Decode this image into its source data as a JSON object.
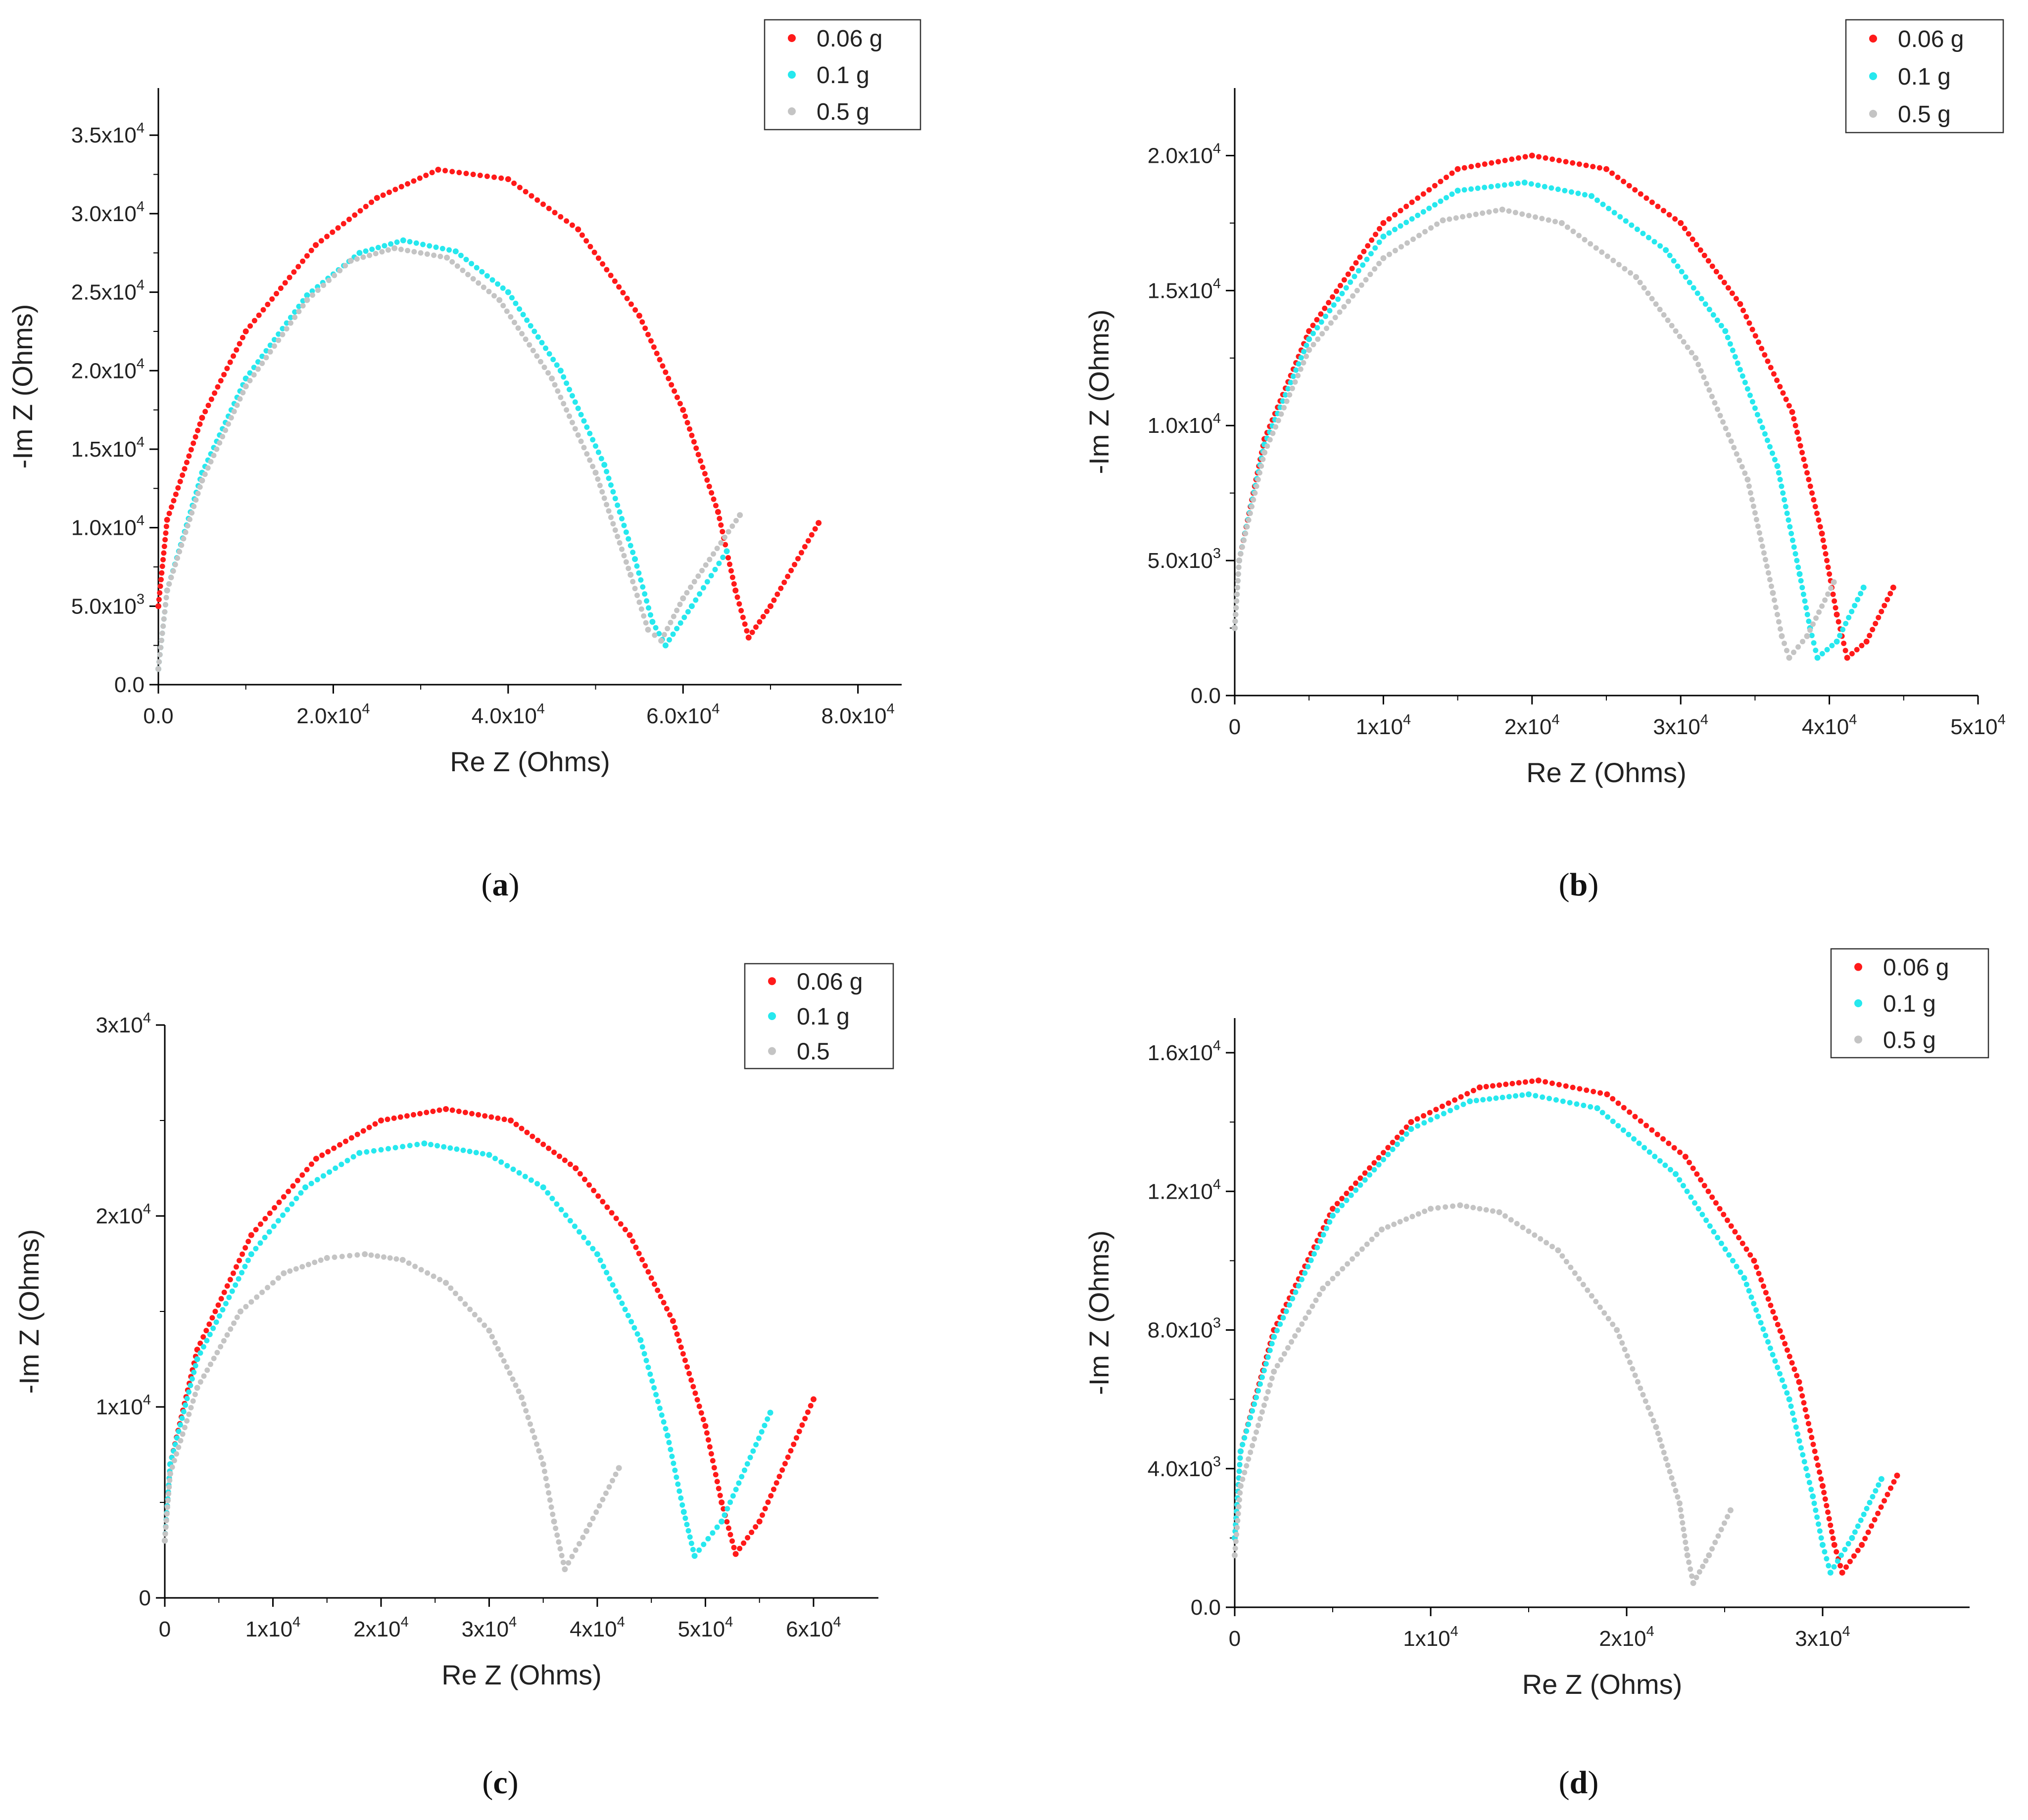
{
  "colors": {
    "red": "#ff1a1a",
    "cyan": "#26e8ee",
    "gray": "#c4c4c4",
    "axis": "#000000"
  },
  "chart_data": [
    {
      "panel": "a",
      "type": "scatter",
      "xlabel": "Re Z (Ohms)",
      "ylabel": "-Im Z (Ohms)",
      "xlim": [
        0,
        85000
      ],
      "ylim": [
        0,
        38000
      ],
      "xticks": [
        0,
        20000,
        40000,
        60000,
        80000
      ],
      "xticklabels": [
        {
          "m": "0.0",
          "e": ""
        },
        {
          "m": "2.0x10",
          "e": "4"
        },
        {
          "m": "4.0x10",
          "e": "4"
        },
        {
          "m": "6.0x10",
          "e": "4"
        },
        {
          "m": "8.0x10",
          "e": "4"
        }
      ],
      "yticks": [
        0,
        5000,
        10000,
        15000,
        20000,
        25000,
        30000,
        35000
      ],
      "yticklabels": [
        {
          "m": "0.0",
          "e": ""
        },
        {
          "m": "5.0x10",
          "e": "3"
        },
        {
          "m": "1.0x10",
          "e": "4"
        },
        {
          "m": "1.5x10",
          "e": "4"
        },
        {
          "m": "2.0x10",
          "e": "4"
        },
        {
          "m": "2.5x10",
          "e": "4"
        },
        {
          "m": "3.0x10",
          "e": "4"
        },
        {
          "m": "3.5x10",
          "e": "4"
        }
      ],
      "legend_position": "top-right",
      "series": [
        {
          "name": "0.06 g",
          "color": "red",
          "x": [
            0,
            1000,
            5000,
            10000,
            18000,
            25000,
            32000,
            40000,
            48000,
            55000,
            60000,
            64000,
            66000,
            67500,
            70000,
            75500
          ],
          "y": [
            5000,
            10500,
            17000,
            22500,
            28000,
            31000,
            32800,
            32200,
            29000,
            23500,
            17500,
            11000,
            6000,
            3000,
            5000,
            10300
          ]
        },
        {
          "name": "0.1 g",
          "color": "cyan",
          "x": [
            0,
            1000,
            5000,
            10000,
            17000,
            23000,
            28000,
            34000,
            40000,
            46000,
            51000,
            54500,
            56500,
            58000,
            61000,
            65000
          ],
          "y": [
            1000,
            6000,
            13500,
            19500,
            24800,
            27500,
            28300,
            27600,
            25000,
            20000,
            14000,
            8000,
            4000,
            2500,
            5000,
            8500
          ]
        },
        {
          "name": "0.5 g",
          "color": "gray",
          "x": [
            0,
            1000,
            5000,
            10000,
            17000,
            22000,
            27000,
            33000,
            39000,
            45000,
            50000,
            54000,
            56000,
            57500,
            60000,
            66500
          ],
          "y": [
            1000,
            6000,
            13000,
            19000,
            24500,
            27000,
            27800,
            27200,
            24500,
            19500,
            13500,
            7000,
            3500,
            2800,
            5500,
            10800
          ]
        }
      ]
    },
    {
      "panel": "b",
      "type": "scatter",
      "xlabel": "Re Z (Ohms)",
      "ylabel": "-Im Z (Ohms)",
      "xlim": [
        0,
        50000
      ],
      "ylim": [
        0,
        22500
      ],
      "xticks": [
        0,
        10000,
        20000,
        30000,
        40000,
        50000
      ],
      "xticklabels": [
        {
          "m": "0",
          "e": ""
        },
        {
          "m": "1x10",
          "e": "4"
        },
        {
          "m": "2x10",
          "e": "4"
        },
        {
          "m": "3x10",
          "e": "4"
        },
        {
          "m": "4x10",
          "e": "4"
        },
        {
          "m": "5x10",
          "e": "4"
        }
      ],
      "yticks": [
        0,
        5000,
        10000,
        15000,
        20000
      ],
      "yticklabels": [
        {
          "m": "0.0",
          "e": ""
        },
        {
          "m": "5.0x10",
          "e": "3"
        },
        {
          "m": "1.0x10",
          "e": "4"
        },
        {
          "m": "1.5x10",
          "e": "4"
        },
        {
          "m": "2.0x10",
          "e": "4"
        }
      ],
      "legend_position": "top-right",
      "series": [
        {
          "name": "0.06 g",
          "color": "red",
          "x": [
            0,
            300,
            2000,
            5000,
            10000,
            15000,
            20000,
            25000,
            30000,
            34000,
            37500,
            39500,
            40500,
            41200,
            42500,
            44300
          ],
          "y": [
            2500,
            5000,
            9500,
            13500,
            17500,
            19500,
            20000,
            19500,
            17500,
            14500,
            10500,
            6000,
            3000,
            1400,
            2000,
            4000
          ]
        },
        {
          "name": "0.1 g",
          "color": "cyan",
          "x": [
            0,
            300,
            2000,
            5000,
            10000,
            15000,
            19500,
            24000,
            29000,
            33000,
            36500,
            38000,
            38700,
            39200,
            40500,
            42300
          ],
          "y": [
            2500,
            5000,
            9300,
            13200,
            17000,
            18700,
            19000,
            18500,
            16500,
            13500,
            8500,
            4500,
            2500,
            1400,
            2000,
            4000
          ]
        },
        {
          "name": "0.5 g",
          "color": "gray",
          "x": [
            0,
            300,
            2000,
            5000,
            10000,
            14000,
            18000,
            22000,
            27000,
            31000,
            34500,
            36200,
            36800,
            37300,
            38500,
            40300
          ],
          "y": [
            2500,
            5000,
            9000,
            12800,
            16200,
            17600,
            18000,
            17500,
            15500,
            12500,
            8000,
            3800,
            2200,
            1400,
            2200,
            4200
          ]
        }
      ]
    },
    {
      "panel": "c",
      "type": "scatter",
      "xlabel": "Re Z (Ohms)",
      "ylabel": "-Im Z (Ohms)",
      "xlim": [
        0,
        66000
      ],
      "ylim": [
        0,
        30000
      ],
      "xticks": [
        0,
        10000,
        20000,
        30000,
        40000,
        50000,
        60000
      ],
      "xticklabels": [
        {
          "m": "0",
          "e": ""
        },
        {
          "m": "1x10",
          "e": "4"
        },
        {
          "m": "2x10",
          "e": "4"
        },
        {
          "m": "3x10",
          "e": "4"
        },
        {
          "m": "4x10",
          "e": "4"
        },
        {
          "m": "5x10",
          "e": "4"
        },
        {
          "m": "6x10",
          "e": "4"
        }
      ],
      "yticks": [
        0,
        10000,
        20000,
        30000
      ],
      "yticklabels": [
        {
          "m": "0",
          "e": ""
        },
        {
          "m": "1x10",
          "e": "4"
        },
        {
          "m": "2x10",
          "e": "4"
        },
        {
          "m": "3x10",
          "e": "4"
        }
      ],
      "legend_position": "top-right",
      "series": [
        {
          "name": "0.06 g",
          "color": "red",
          "x": [
            0,
            500,
            3000,
            8000,
            14000,
            20000,
            26000,
            32000,
            38000,
            43000,
            47000,
            50000,
            51500,
            52800,
            55000,
            60000
          ],
          "y": [
            3000,
            7000,
            13000,
            19000,
            23000,
            25000,
            25600,
            25000,
            22500,
            19000,
            14500,
            9000,
            5000,
            2300,
            4000,
            10400
          ]
        },
        {
          "name": "0.1 g",
          "color": "cyan",
          "x": [
            0,
            500,
            3000,
            8000,
            13000,
            18000,
            24000,
            30000,
            35000,
            40000,
            44000,
            46500,
            48000,
            49000,
            51500,
            56000
          ],
          "y": [
            3000,
            7000,
            12500,
            18000,
            21500,
            23300,
            23800,
            23200,
            21500,
            18000,
            13500,
            8500,
            4500,
            2200,
            4000,
            9700
          ]
        },
        {
          "name": "0.5",
          "color": "gray",
          "x": [
            0,
            500,
            3000,
            7000,
            11000,
            15000,
            18500,
            22000,
            26000,
            30000,
            33000,
            35000,
            36000,
            37000,
            39000,
            42000
          ],
          "y": [
            3000,
            6500,
            11000,
            15000,
            17000,
            17800,
            18000,
            17700,
            16500,
            14000,
            10500,
            7000,
            4000,
            1500,
            3500,
            6800
          ]
        }
      ]
    },
    {
      "panel": "d",
      "type": "scatter",
      "xlabel": "Re Z (Ohms)",
      "ylabel": "-Im Z (Ohms)",
      "xlim": [
        0,
        37500
      ],
      "ylim": [
        0,
        17000
      ],
      "xticks": [
        0,
        10000,
        20000,
        30000
      ],
      "xticklabels": [
        {
          "m": "0",
          "e": ""
        },
        {
          "m": "1x10",
          "e": "4"
        },
        {
          "m": "2x10",
          "e": "4"
        },
        {
          "m": "3x10",
          "e": "4"
        }
      ],
      "yticks": [
        0,
        4000,
        8000,
        12000,
        16000
      ],
      "yticklabels": [
        {
          "m": "0.0",
          "e": ""
        },
        {
          "m": "4.0x10",
          "e": "3"
        },
        {
          "m": "8.0x10",
          "e": "3"
        },
        {
          "m": "1.2x10",
          "e": "4"
        },
        {
          "m": "1.6x10",
          "e": "4"
        }
      ],
      "legend_position": "top-right",
      "series": [
        {
          "name": "0.06 g",
          "color": "red",
          "x": [
            0,
            300,
            2000,
            5000,
            9000,
            12500,
            15500,
            19000,
            23000,
            26500,
            28800,
            30000,
            30600,
            31000,
            32000,
            33800
          ],
          "y": [
            2000,
            4500,
            8000,
            11500,
            14000,
            15000,
            15200,
            14800,
            13000,
            10000,
            6500,
            3500,
            1800,
            1000,
            1800,
            3800
          ]
        },
        {
          "name": "0.1 g",
          "color": "cyan",
          "x": [
            0,
            300,
            2000,
            5000,
            9000,
            12000,
            15000,
            18500,
            22500,
            26000,
            28300,
            29500,
            30000,
            30400,
            31500,
            33000
          ],
          "y": [
            2000,
            4500,
            7800,
            11300,
            13800,
            14600,
            14800,
            14400,
            12500,
            9500,
            6000,
            3200,
            1800,
            1000,
            2000,
            3700
          ]
        },
        {
          "name": "0.5 g",
          "color": "gray",
          "x": [
            0,
            300,
            2000,
            4500,
            7500,
            10000,
            11500,
            13500,
            16500,
            19500,
            21500,
            22700,
            23100,
            23400,
            24200,
            25300
          ],
          "y": [
            1500,
            3500,
            6800,
            9200,
            10900,
            11500,
            11600,
            11400,
            10300,
            8000,
            5200,
            3000,
            1500,
            700,
            1500,
            2800
          ]
        }
      ]
    }
  ]
}
